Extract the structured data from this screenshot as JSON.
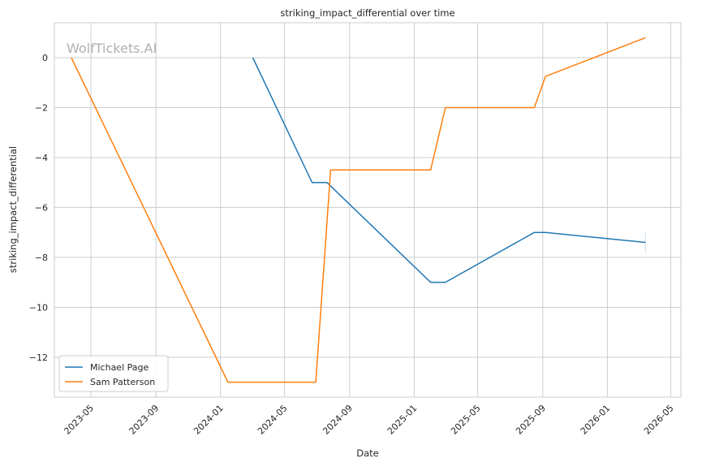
{
  "chart_data": {
    "type": "line",
    "title": "striking_impact_differential over time",
    "xlabel": "Date",
    "ylabel": "striking_impact_differential",
    "watermark": "WolfTickets.AI",
    "x_ticks": [
      "2023-05",
      "2023-09",
      "2024-01",
      "2024-05",
      "2024-09",
      "2025-01",
      "2025-05",
      "2025-09",
      "2026-01",
      "2026-05"
    ],
    "y_ticks": [
      0,
      -2,
      -4,
      -6,
      -8,
      -10,
      -12
    ],
    "y_tick_labels": [
      "0",
      "−2",
      "−4",
      "−6",
      "−8",
      "−10",
      "−12"
    ],
    "xlim": [
      "2023-02-21",
      "2026-05-20"
    ],
    "ylim": [
      -13.6,
      1.4
    ],
    "grid": true,
    "legend_position": "lower-left",
    "series": [
      {
        "name": "Michael Page",
        "color": "#1f77b4",
        "points": [
          {
            "x": "2024-03-02",
            "y": 0
          },
          {
            "x": "2024-06-22",
            "y": -5
          },
          {
            "x": "2024-07-20",
            "y": -5
          },
          {
            "x": "2025-02-01",
            "y": -9
          },
          {
            "x": "2025-03-01",
            "y": -9
          },
          {
            "x": "2025-08-16",
            "y": -7
          },
          {
            "x": "2025-09-06",
            "y": -7
          },
          {
            "x": "2026-03-14",
            "y": -7.4
          }
        ]
      },
      {
        "name": "Sam Patterson",
        "color": "#ff7f0e",
        "points": [
          {
            "x": "2023-03-25",
            "y": 0
          },
          {
            "x": "2024-01-15",
            "y": -13
          },
          {
            "x": "2024-06-29",
            "y": -13
          },
          {
            "x": "2024-07-27",
            "y": -4.5
          },
          {
            "x": "2025-02-01",
            "y": -4.5
          },
          {
            "x": "2025-03-01",
            "y": -2
          },
          {
            "x": "2025-08-16",
            "y": -2
          },
          {
            "x": "2025-09-06",
            "y": -0.75
          },
          {
            "x": "2026-03-14",
            "y": 0.8
          }
        ]
      }
    ]
  }
}
